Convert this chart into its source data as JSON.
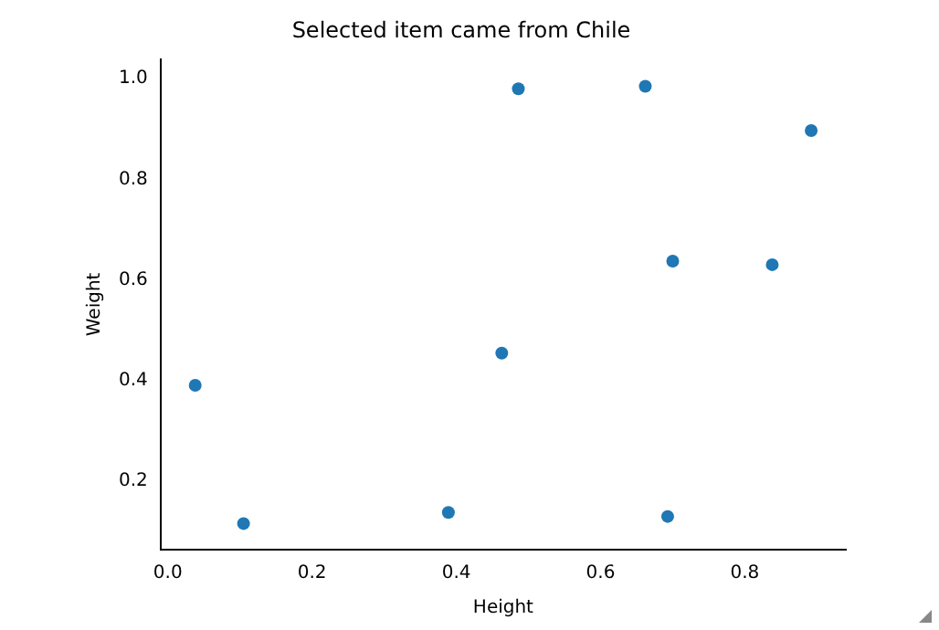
{
  "chart_data": {
    "type": "scatter",
    "title": "Selected item came from Chile",
    "xlabel": "Height",
    "ylabel": "Weight",
    "x": [
      0.038,
      0.105,
      0.389,
      0.463,
      0.486,
      0.662,
      0.7,
      0.693,
      0.838,
      0.892
    ],
    "values": [
      0.39,
      0.115,
      0.137,
      0.454,
      0.98,
      0.985,
      0.637,
      0.129,
      0.63,
      0.897
    ],
    "color": "#1f77b4",
    "marker": "circle",
    "xlim": [
      -0.01,
      0.94
    ],
    "xticks": [
      {
        "value": 0,
        "label": "0.0"
      },
      0.2,
      0.4,
      0.6,
      0.8
    ],
    "ylim": [
      0.063,
      1.039
    ],
    "yticks": [
      0.2,
      0.4,
      0.6,
      0.8,
      {
        "value": 1,
        "label": "1.0"
      }
    ],
    "grid": false,
    "legend": false
  }
}
